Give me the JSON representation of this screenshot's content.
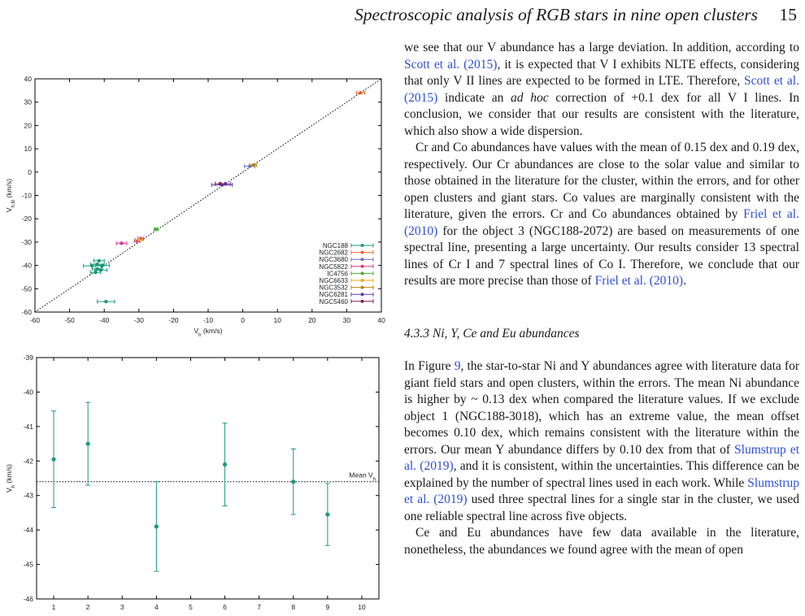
{
  "header": {
    "title": "Spectroscopic analysis of RGB stars in nine open clusters",
    "page_number": "15"
  },
  "colors": {
    "link": "#2b4fd8",
    "green": "#1a9b78",
    "text": "#1a1a1a"
  },
  "chart_data": [
    {
      "type": "scatter",
      "xlabel": "V_h (km/s)",
      "ylabel": "V_h,lit (km/s)",
      "xlim": [
        -60,
        40
      ],
      "ylim": [
        -60,
        40
      ],
      "xticks": [
        -60,
        -50,
        -40,
        -30,
        -20,
        -10,
        0,
        10,
        20,
        30,
        40
      ],
      "yticks": [
        -60,
        -50,
        -40,
        -30,
        -20,
        -10,
        0,
        10,
        20,
        30,
        40
      ],
      "reference_line": "y = x",
      "legend_position": "lower-right",
      "series": [
        {
          "name": "NGC188",
          "color": "#1a9b78",
          "points": [
            [
              -43.5,
              -40.2,
              2.5
            ],
            [
              -42.0,
              -39.5,
              2.0
            ],
            [
              -41.0,
              -42.0,
              1.8
            ],
            [
              -42.5,
              -43.0,
              1.5
            ],
            [
              -40.5,
              -40.0,
              2.0
            ],
            [
              -41.5,
              -38.0,
              1.5
            ],
            [
              -42.0,
              -41.5,
              1.5
            ],
            [
              -39.5,
              -55.5,
              2.5
            ]
          ]
        },
        {
          "name": "NGC2682",
          "color": "#e8662a",
          "points": [
            [
              34.0,
              34.0,
              1.2
            ]
          ]
        },
        {
          "name": "NGC3680",
          "color": "#6a6fcf",
          "points": [
            [
              2.0,
              2.5,
              1.5
            ]
          ]
        },
        {
          "name": "NGC5822",
          "color": "#e0338a",
          "points": [
            [
              -29.5,
              -28.5,
              0.8
            ],
            [
              -30.5,
              -29.5,
              0.8
            ],
            [
              -35.0,
              -30.5,
              1.5
            ]
          ]
        },
        {
          "name": "IC4756",
          "color": "#4fa83a",
          "points": [
            [
              -25.0,
              -24.5,
              0.6
            ]
          ]
        },
        {
          "name": "NGC6633",
          "color": "#f0a81e",
          "points": [
            [
              -30.0,
              -29.0,
              1.0
            ]
          ]
        },
        {
          "name": "NGC3532",
          "color": "#b8860b",
          "points": [
            [
              3.0,
              3.0,
              1.0
            ]
          ]
        },
        {
          "name": "NGC6281",
          "color": "#5a3ea8",
          "points": [
            [
              -6.0,
              -5.5,
              3.0
            ],
            [
              -5.0,
              -5.0,
              1.5
            ]
          ]
        },
        {
          "name": "NGC5460",
          "color": "#8a1a5a",
          "points": [
            [
              -6.5,
              -5.0,
              1.5
            ]
          ]
        }
      ]
    },
    {
      "type": "scatter",
      "xlabel": "",
      "ylabel": "V_h (km/s)",
      "xlim": [
        0.5,
        10.5
      ],
      "ylim": [
        -46,
        -39
      ],
      "xticks": [
        1,
        2,
        3,
        4,
        5,
        6,
        7,
        8,
        9,
        10
      ],
      "yticks": [
        -46,
        -45,
        -44,
        -43,
        -42,
        -41,
        -40,
        -39
      ],
      "mean_label": "Mean V_h",
      "mean_value": -42.6,
      "color": "#1a9b78",
      "x": [
        1,
        2,
        4,
        6,
        8,
        9
      ],
      "y": [
        -41.95,
        -41.5,
        -43.9,
        -42.1,
        -42.6,
        -43.55
      ],
      "yerr": [
        1.4,
        1.2,
        1.3,
        1.2,
        0.95,
        0.9
      ]
    }
  ],
  "body": {
    "p1": [
      {
        "t": "we see that our V abundance has a large deviation. In addition, according to "
      },
      {
        "t": "Scott et al. (2015)",
        "link": true
      },
      {
        "t": ", it is expected that V I exhibits NLTE effects, considering that only V II lines are expected to be formed in LTE. Therefore, "
      },
      {
        "t": "Scott et al. (2015)",
        "link": true
      },
      {
        "t": " indicate an "
      },
      {
        "t": "ad hoc",
        "em": true
      },
      {
        "t": " correction of +0.1 dex for all V I lines. In conclusion, we consider that our results are consistent with the literature, which also show a wide dispersion."
      }
    ],
    "p2": [
      {
        "t": "Cr and Co abundances have values with the mean of 0.15 dex and 0.19 dex, respectively. Our Cr abundances are close to the solar value and similar to those obtained in the literature for the cluster, within the errors, and for other open clusters and giant stars. Co values are marginally consistent with the literature, given the errors. Cr and Co abundances obtained by "
      },
      {
        "t": "Friel et al. (2010)",
        "link": true
      },
      {
        "t": " for the object 3 (NGC188-2072) are based on measurements of one spectral line, presenting a large uncertainty. Our results consider 13 spectral lines of Cr I and 7 spectral lines of Co I. Therefore, we conclude that our results are more precise than those of "
      },
      {
        "t": "Friel et al. (2010)",
        "link": true
      },
      {
        "t": "."
      }
    ],
    "section": "4.3.3  Ni, Y, Ce and Eu abundances",
    "p3": [
      {
        "t": "In Figure "
      },
      {
        "t": "9",
        "link": true
      },
      {
        "t": ", the star-to-star Ni and Y abundances agree with literature data for giant field stars and open clusters, within the errors. The mean Ni abundance is higher by ~ 0.13 dex when compared the literature values. If we exclude object 1 (NGC188-3018), which has an extreme value, the mean offset becomes 0.10 dex, which remains consistent with the literature within the errors. Our mean Y abundance differs by 0.10 dex from that of "
      },
      {
        "t": "Slumstrup et al. (2019)",
        "link": true
      },
      {
        "t": ", and it is consistent, within the uncertainties. This difference can be explained by the number of spectral lines used in each work. While "
      },
      {
        "t": "Slumstrup et al. (2019)",
        "link": true
      },
      {
        "t": " used three spectral lines for a single star in the cluster, we used one reliable spectral line across five objects."
      }
    ],
    "p4": [
      {
        "t": "Ce and Eu abundances have few data available in the literature, nonetheless, the abundances we found agree with the mean of open"
      }
    ]
  }
}
